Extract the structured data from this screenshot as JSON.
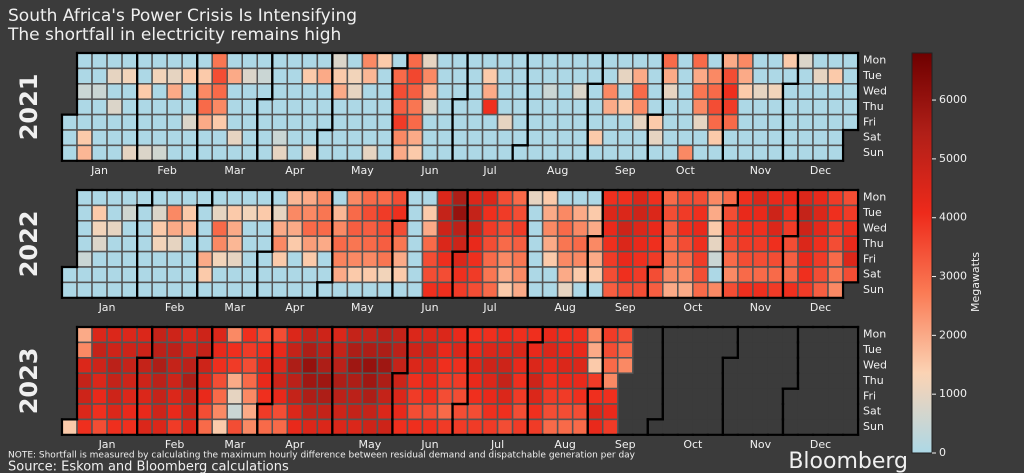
{
  "title": "South Africa's Power Crisis Is Intensifying",
  "subtitle": "The shortfall in electricity remains high",
  "note": "NOTE: Shortfall is measured by calculating the maximum hourly difference between residual demand and dispatchable generation per day",
  "source": "Source: Eskom and Bloomberg calculations",
  "brand": "Bloomberg",
  "colorbar": {
    "label": "Megawatts",
    "lim": [
      0,
      6800
    ],
    "ticks": [
      0,
      1000,
      2000,
      3000,
      4000,
      5000,
      6000
    ],
    "colormap": [
      "#add8e6",
      "#fbd3b4",
      "#fa7b55",
      "#ee2a1b",
      "#b01f18",
      "#6e0000"
    ]
  },
  "chart_data": [
    {
      "type": "calendar",
      "title": "2021",
      "categories": [
        "Jan",
        "Feb",
        "Mar",
        "Apr",
        "May",
        "Jun",
        "Jul",
        "Aug",
        "Sep",
        "Oct",
        "Nov",
        "Dec"
      ],
      "rows": [
        "Mon",
        "Tue",
        "Wed",
        "Thu",
        "Fri",
        "Sat",
        "Sun"
      ],
      "values": [
        [
          0,
          0,
          0,
          0,
          0,
          500,
          0,
          0,
          1500,
          1800,
          0,
          0,
          500,
          0,
          0,
          0,
          0,
          0,
          1000,
          0,
          800,
          0,
          0,
          0,
          0,
          1200,
          0,
          0,
          0,
          0,
          1000
        ],
        [
          0,
          0,
          1500,
          0,
          0,
          0,
          800,
          0,
          1200,
          0,
          0,
          0,
          0,
          600,
          0,
          1000,
          2000,
          0,
          0,
          0,
          0,
          0,
          1500,
          0,
          0,
          800,
          0,
          0
        ],
        [
          0,
          1500,
          2500,
          3000,
          2000,
          0,
          0,
          2800,
          3500,
          3000,
          2500,
          1500,
          0,
          0,
          0,
          2000,
          0,
          0,
          0,
          1000,
          0,
          0,
          800,
          0,
          0,
          0,
          0,
          0,
          0,
          500,
          0
        ],
        [
          0,
          0,
          0,
          0,
          0,
          0,
          0,
          0,
          0,
          500,
          1000,
          0,
          0,
          0,
          0,
          0,
          0,
          0,
          0,
          1500,
          0,
          0,
          0,
          0,
          1000,
          0,
          2000,
          0,
          0,
          0
        ],
        [
          0,
          0,
          800,
          1500,
          2000,
          0,
          0,
          0,
          0,
          0,
          1200,
          1000,
          0,
          0,
          0,
          0,
          2500,
          1800,
          0,
          0,
          0,
          0,
          1000,
          1500,
          0,
          0,
          0,
          0,
          0,
          0,
          0
        ],
        [
          3000,
          3500,
          3200,
          3800,
          2500,
          2000,
          3000,
          3600,
          3200,
          2800,
          3000,
          2000,
          1500,
          1000,
          2500,
          1800,
          800,
          0,
          0,
          0,
          0,
          0,
          0,
          0,
          0,
          0,
          0,
          0,
          0,
          0
        ],
        [
          0,
          0,
          0,
          0,
          0,
          0,
          0,
          0,
          0,
          0,
          0,
          0,
          1500,
          2000,
          4000,
          0,
          0,
          0,
          0,
          0,
          0,
          0,
          1000,
          0,
          0,
          0,
          0,
          0,
          0,
          0,
          0
        ],
        [
          0,
          0,
          0,
          0,
          0,
          0,
          0,
          0,
          0,
          0,
          500,
          0,
          0,
          0,
          0,
          0,
          0,
          0,
          0,
          0,
          0,
          0,
          0,
          0,
          800,
          0,
          0,
          0,
          0,
          0,
          0
        ],
        [
          0,
          0,
          0,
          1500,
          0,
          0,
          0,
          2500,
          2000,
          0,
          0,
          0,
          0,
          1000,
          0,
          1500,
          0,
          0,
          0,
          0,
          2000,
          3000,
          2500,
          1000,
          0,
          0,
          0,
          0,
          0,
          0
        ],
        [
          1500,
          1000,
          0,
          3000,
          2000,
          1000,
          0,
          0,
          0,
          0,
          0,
          0,
          0,
          0,
          0,
          0,
          2500,
          3000,
          2000,
          2800,
          2500,
          1000,
          0,
          0,
          0,
          2500,
          3000,
          3500,
          3000,
          1500,
          0
        ],
        [
          2000,
          3500,
          4000,
          3800,
          3000,
          0,
          0,
          2500,
          2000,
          1500,
          0,
          0,
          0,
          0,
          0,
          0,
          1000,
          0,
          0,
          0,
          0,
          0,
          0,
          1200,
          0,
          0,
          0,
          0,
          1500,
          0
        ],
        [
          0,
          0,
          0,
          0,
          0,
          800,
          0,
          0,
          0,
          0,
          0,
          0,
          0,
          1000,
          0,
          0,
          0,
          0,
          0,
          0,
          1500,
          0,
          0,
          0,
          0,
          0,
          0,
          0,
          0,
          0,
          0
        ]
      ]
    },
    {
      "type": "calendar",
      "title": "2022",
      "categories": [
        "Jan",
        "Feb",
        "Mar",
        "Apr",
        "May",
        "Jun",
        "Jul",
        "Aug",
        "Sep",
        "Oct",
        "Nov",
        "Dec"
      ],
      "rows": [
        "Mon",
        "Tue",
        "Wed",
        "Thu",
        "Fri",
        "Sat",
        "Sun"
      ],
      "values": [
        [
          0,
          0,
          0,
          0,
          0,
          0,
          500,
          0,
          0,
          0,
          1500,
          1200,
          800,
          0,
          0,
          0,
          0,
          0,
          1000,
          0,
          0,
          0,
          0,
          0,
          600,
          0,
          0,
          0,
          0,
          0,
          0
        ],
        [
          0,
          0,
          0,
          0,
          0,
          0,
          0,
          800,
          1500,
          1200,
          0,
          0,
          0,
          0,
          2500,
          2000,
          1000,
          0,
          0,
          0,
          0,
          1500,
          1800,
          0,
          0,
          0,
          0,
          0
        ],
        [
          0,
          0,
          0,
          2000,
          1500,
          0,
          0,
          1000,
          3000,
          2500,
          1200,
          0,
          0,
          0,
          1500,
          2000,
          1800,
          1000,
          0,
          0,
          0,
          1200,
          0,
          0,
          0,
          0,
          0,
          0,
          1500,
          0,
          0
        ],
        [
          0,
          0,
          0,
          0,
          1000,
          2000,
          2500,
          1500,
          0,
          0,
          1800,
          2500,
          2000,
          1500,
          0,
          0,
          0,
          2000,
          2500,
          3000,
          2200,
          1500,
          0,
          0,
          2500,
          2800,
          3000,
          2000,
          0,
          0
        ],
        [
          0,
          0,
          1800,
          2500,
          3000,
          2600,
          2000,
          0,
          2500,
          3000,
          3200,
          2800,
          2500,
          1500,
          0,
          3000,
          3500,
          3200,
          3000,
          2500,
          1500,
          0,
          3000,
          3800,
          3500,
          3200,
          2800,
          1200,
          0,
          3500,
          4000
        ],
        [
          3500,
          2800,
          2000,
          1500,
          0,
          0,
          0,
          0,
          0,
          0,
          0,
          0,
          0,
          1500,
          2000,
          3000,
          3500,
          3500,
          4000,
          4500,
          5000,
          4800,
          4500,
          4000,
          3500,
          4000,
          5500,
          6000,
          5200,
          4800
        ],
        [
          4500,
          4000,
          3800,
          4500,
          5000,
          4800,
          4200,
          4000,
          3800,
          3500,
          4500,
          4000,
          3800,
          3500,
          3000,
          2800,
          3000,
          3500,
          3800,
          3500,
          3000,
          2500,
          2000,
          1500,
          3000,
          3500,
          3800,
          3200,
          2800,
          2500,
          2000
        ],
        [
          1000,
          0,
          0,
          0,
          0,
          0,
          0,
          1500,
          2000,
          2500,
          2000,
          1500,
          0,
          0,
          0,
          2500,
          3000,
          2800,
          2500,
          2000,
          1000,
          0,
          2000,
          2500,
          3000,
          2500,
          1500,
          0,
          0,
          1500,
          2000
        ],
        [
          2500,
          2000,
          1500,
          0,
          4000,
          4500,
          4200,
          4000,
          3800,
          3500,
          3200,
          4000,
          4500,
          4800,
          4500,
          4200,
          4000,
          3500,
          4500,
          4800,
          4500,
          4200,
          4000,
          3800,
          3500,
          4000,
          4500,
          4200,
          4000,
          3800
        ],
        [
          3500,
          3200,
          3000,
          3500,
          3200,
          3000,
          2800,
          2500,
          2000,
          3500,
          3800,
          4000,
          3500,
          3000,
          2500,
          2000,
          3500,
          4000,
          4200,
          4000,
          3800,
          3500,
          3000,
          2500,
          2000,
          1500,
          1000,
          500,
          0,
          2500,
          3000
        ],
        [
          3500,
          3800,
          3500,
          3000,
          2500,
          3500,
          4000,
          4200,
          4000,
          3800,
          3500,
          3000,
          4000,
          4500,
          4200,
          4000,
          3800,
          3500,
          3000,
          4000,
          4200,
          4800,
          4500,
          4000,
          3500,
          3000,
          3800,
          4200,
          4000,
          3800
        ],
        [
          3500,
          3200,
          3000,
          4000,
          4500,
          5000,
          4800,
          4500,
          4200,
          4000,
          3800,
          4200,
          4500,
          4300,
          4000,
          3800,
          3500,
          3200,
          3800,
          4000,
          3800,
          3500,
          3000,
          2800,
          2500,
          3500,
          3800,
          4000,
          4200,
          4500,
          3500
        ]
      ]
    },
    {
      "type": "calendar",
      "title": "2023",
      "categories": [
        "Jan",
        "Feb",
        "Mar",
        "Apr",
        "May",
        "Jun",
        "Jul",
        "Aug",
        "Sep",
        "Oct",
        "Nov",
        "Dec"
      ],
      "rows": [
        "Mon",
        "Tue",
        "Wed",
        "Thu",
        "Fri",
        "Sat",
        "Sun"
      ],
      "values": [
        [
          1500,
          2000,
          2500,
          4500,
          5000,
          4800,
          4500,
          4000,
          4500,
          5000,
          4800,
          4500,
          4200,
          4000,
          3500,
          4500,
          4800,
          5200,
          5000,
          4800,
          4500,
          4000,
          4500,
          4800,
          5000,
          4800,
          4500,
          4200,
          4000,
          4500,
          4800
        ],
        [
          5000,
          4800,
          4500,
          4200,
          4500,
          5000,
          5200,
          5500,
          5200,
          5000,
          4800,
          4500,
          4800,
          5200,
          5000,
          4800,
          4500,
          4200,
          3800,
          4500,
          4800,
          5200,
          5500,
          5000,
          4800,
          4500,
          4800,
          5000
        ],
        [
          4800,
          4500,
          4200,
          3500,
          3000,
          4500,
          4200,
          4000,
          3500,
          3000,
          2500,
          1500,
          2500,
          4000,
          3800,
          2000,
          1000,
          500,
          3500,
          4000,
          3800,
          3500,
          3000,
          2500,
          2000,
          2500,
          3500,
          4000,
          4500,
          4200,
          4000
        ],
        [
          3800,
          3000,
          3500,
          4200,
          4500,
          4800,
          4200,
          3500,
          3000,
          4500,
          5000,
          5500,
          5200,
          5000,
          4500,
          4200,
          5000,
          5500,
          6000,
          5800,
          5500,
          5000,
          4500,
          4800,
          5200,
          5500,
          5800,
          5500,
          5000,
          4500
        ],
        [
          4500,
          5000,
          5200,
          5500,
          5200,
          4800,
          4500,
          5000,
          5500,
          5800,
          5500,
          5200,
          5000,
          4500,
          5000,
          5500,
          6000,
          5800,
          5500,
          5000,
          4800,
          5200,
          5500,
          5800,
          5500,
          5000,
          4500,
          4800,
          5000,
          5200,
          5000
        ],
        [
          4800,
          4500,
          4200,
          4000,
          4500,
          4800,
          4500,
          4000,
          3800,
          3500,
          4000,
          4500,
          4800,
          4500,
          4200,
          4000,
          3500,
          4000,
          4500,
          4200,
          4000,
          3800,
          3500,
          3000,
          3800,
          4200,
          4500,
          4000,
          3800,
          3500
        ],
        [
          3500,
          3800,
          4000,
          4200,
          4500,
          4200,
          4000,
          3500,
          3800,
          4000,
          4500,
          4800,
          4500,
          4200,
          4000,
          3800,
          4200,
          4500,
          4800,
          5000,
          4500,
          4000,
          3500,
          4000,
          4500,
          4200,
          4000,
          3800,
          3500,
          3800,
          4000
        ],
        [
          4200,
          4500,
          4800,
          4500,
          4000,
          3800,
          4200,
          4500,
          4200,
          4000,
          3800,
          3500,
          3000,
          4000,
          4200,
          4500,
          4200,
          3800,
          3500,
          3000,
          4000,
          4200,
          4500,
          4200,
          4000,
          3500,
          3000,
          2500,
          2000,
          1500,
          3800
        ],
        [
          4000,
          4500,
          4200,
          3800,
          3500,
          3000,
          2500,
          4000,
          4200,
          3800,
          3500,
          3000,
          2500
        ],
        [],
        [],
        []
      ]
    }
  ]
}
